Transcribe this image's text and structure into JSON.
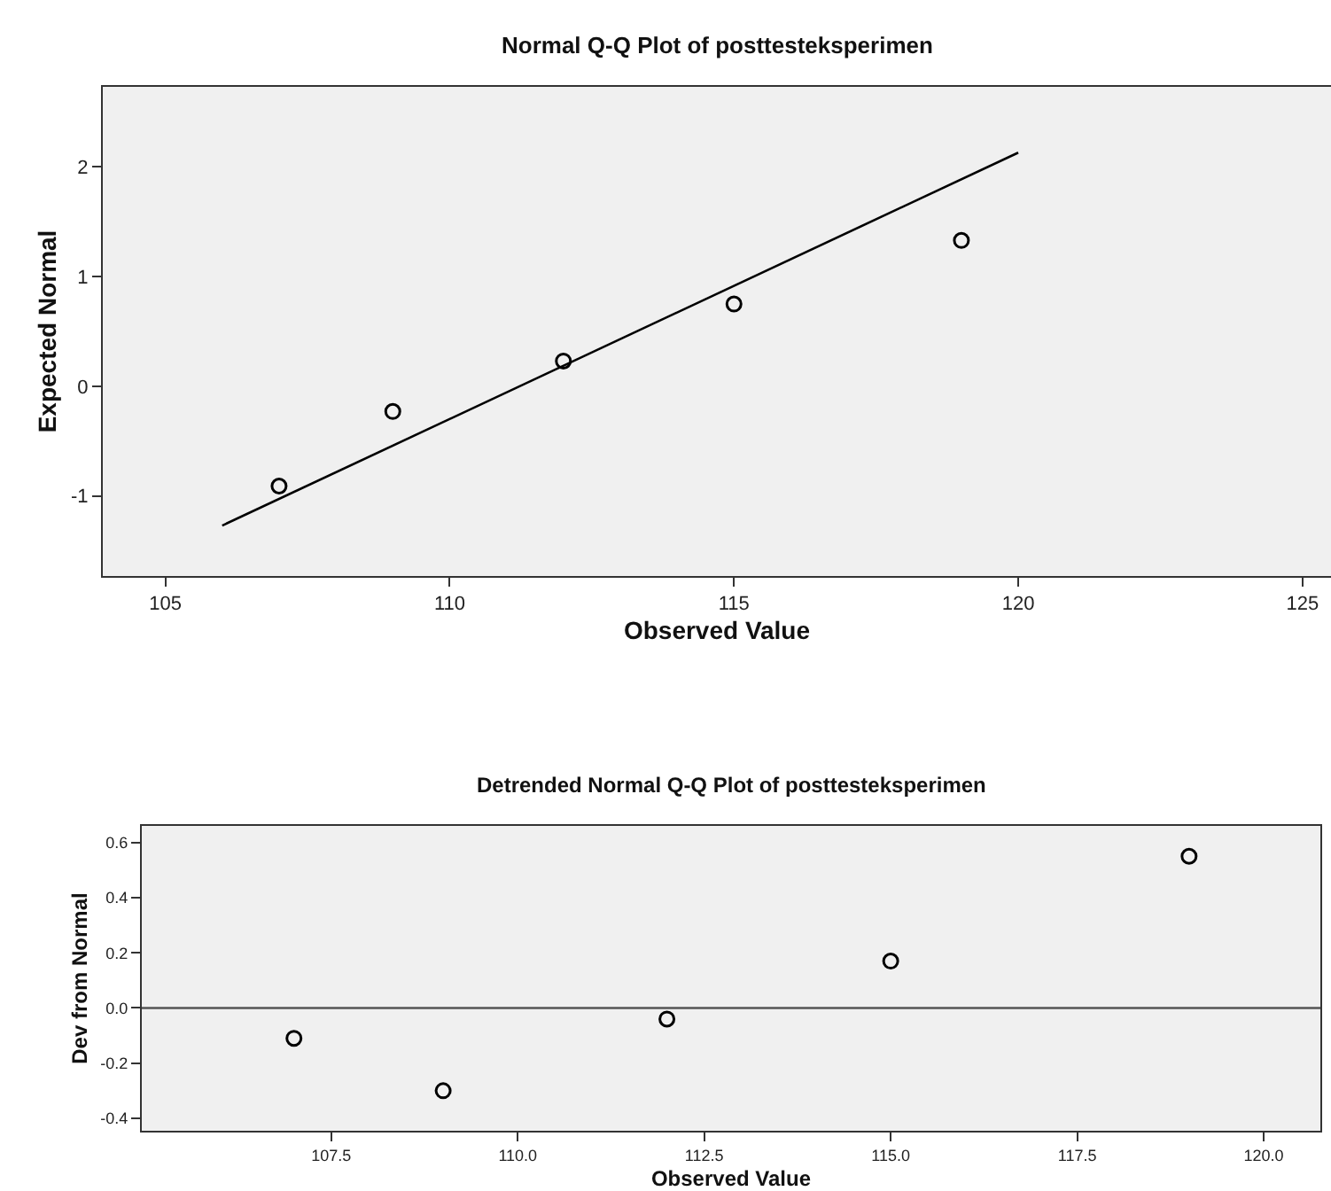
{
  "chart_data": [
    {
      "type": "scatter",
      "title": "Normal Q-Q Plot of posttesteksperimen",
      "xlabel": "Observed Value",
      "ylabel": "Expected Normal",
      "marker": "circle",
      "grid": false,
      "xlim": [
        103.9,
        125.5
      ],
      "xticks": [
        105,
        110,
        115,
        120,
        125
      ],
      "ylim": [
        -1.73,
        2.73
      ],
      "yticks": [
        -1,
        0,
        1,
        2
      ],
      "series": [
        {
          "color": "#000000",
          "x": [
            107,
            109,
            112,
            115,
            119
          ],
          "values": [
            -0.91,
            -0.23,
            0.23,
            0.75,
            1.33
          ]
        },
        {
          "type": "line",
          "marker": "none",
          "color": "#000000",
          "x": [
            106,
            120
          ],
          "values": [
            -1.27,
            2.13
          ]
        }
      ]
    },
    {
      "type": "scatter",
      "title": "Detrended Normal Q-Q Plot of posttesteksperimen",
      "xlabel": "Observed Value",
      "ylabel": "Dev from Normal",
      "marker": "circle",
      "grid": false,
      "xlim": [
        104.96,
        120.76
      ],
      "xticks": [
        {
          "value": 107.5,
          "label": "107.5"
        },
        {
          "value": 110,
          "label": "110.0"
        },
        {
          "value": 112.5,
          "label": "112.5"
        },
        {
          "value": 115,
          "label": "115.0"
        },
        {
          "value": 117.5,
          "label": "117.5"
        },
        {
          "value": 120,
          "label": "120.0"
        }
      ],
      "ylim": [
        -0.445,
        0.66
      ],
      "yticks": [
        {
          "value": -0.4,
          "label": "-0.4"
        },
        {
          "value": -0.2,
          "label": "-0.2"
        },
        {
          "value": 0,
          "label": "0.0"
        },
        {
          "value": 0.2,
          "label": "0.2"
        },
        {
          "value": 0.4,
          "label": "0.4"
        },
        {
          "value": 0.6,
          "label": "0.6"
        }
      ],
      "ref_lines": [
        {
          "axis": "y",
          "value": 0,
          "color": "#555555"
        }
      ],
      "series": [
        {
          "color": "#000000",
          "x": [
            107,
            109,
            112,
            115,
            119
          ],
          "values": [
            -0.11,
            -0.3,
            -0.04,
            0.17,
            0.55
          ]
        }
      ]
    }
  ]
}
